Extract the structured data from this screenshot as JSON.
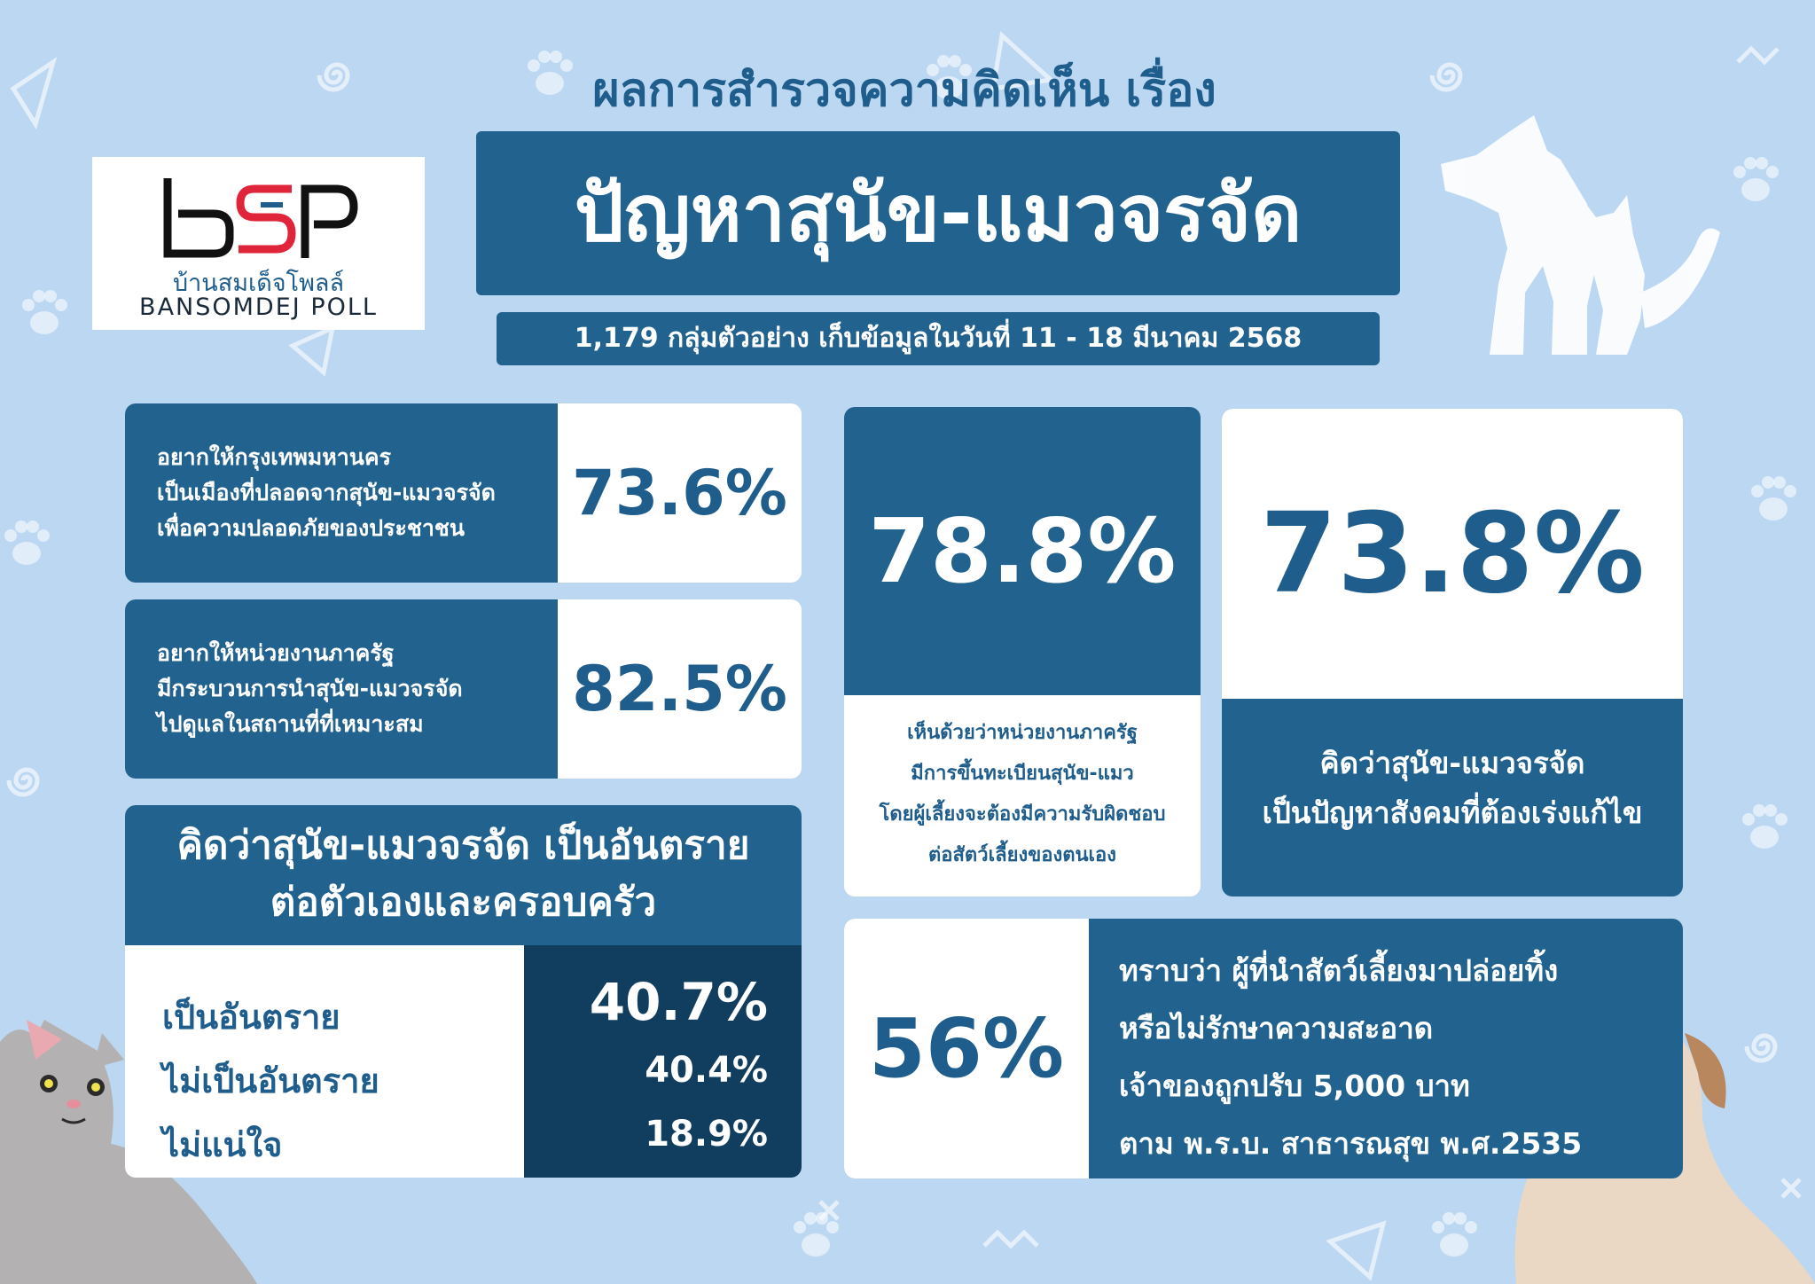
{
  "header": {
    "survey_line": "ผลการสำรวจความคิดเห็น เรื่อง",
    "title": "ปัญหาสุนัข-แมวจรจัด",
    "sample_info": "1,179 กลุ่มตัวอย่าง เก็บข้อมูลในวันที่ 11 - 18 มีนาคม 2568"
  },
  "logo": {
    "mark": "bSP",
    "thai_name": "บ้านสมเด็จโพลล์",
    "english_name": "BANSOMDEJ POLL"
  },
  "stats_left": [
    {
      "lines": [
        "อยากให้กรุงเทพมหานคร",
        "เป็นเมืองที่ปลอดจากสุนัข-แมวจรจัด",
        "เพื่อความปลอดภัยของประชาชน"
      ],
      "value": "73.6%"
    },
    {
      "lines": [
        "อยากให้หน่วยงานภาครัฐ",
        "มีกระบวนการนำสุนัข-แมวจรจัด",
        "ไปดูแลในสถานที่ที่เหมาะสม"
      ],
      "value": "82.5%"
    }
  ],
  "danger": {
    "title_lines": [
      "คิดว่าสุนัข-แมวจรจัด เป็นอันตราย",
      "ต่อตัวเองและครอบครัว"
    ],
    "rows": [
      {
        "label": "เป็นอันตราย",
        "value": "40.7%"
      },
      {
        "label": "ไม่เป็นอันตราย",
        "value": "40.4%"
      },
      {
        "label": "ไม่แน่ใจ",
        "value": "18.9%"
      }
    ]
  },
  "registration": {
    "value": "78.8%",
    "lines": [
      "เห็นด้วยว่าหน่วยงานภาครัฐ",
      "มีการขึ้นทะเบียนสุนัข-แมว",
      "โดยผู้เลี้ยงจะต้องมีความรับผิดชอบ",
      "ต่อสัตว์เลี้ยงของตนเอง"
    ]
  },
  "social_problem": {
    "value": "73.8%",
    "lines": [
      "คิดว่าสุนัข-แมวจรจัด",
      "เป็นปัญหาสังคมที่ต้องเร่งแก้ไข"
    ]
  },
  "fine": {
    "value": "56%",
    "lines": [
      "ทราบว่า ผู้ที่นำสัตว์เลี้ยงมาปล่อยทิ้ง",
      "หรือไม่รักษาความสะอาด",
      "เจ้าของถูกปรับ 5,000 บาท",
      "ตาม พ.ร.บ. สาธารณสุข พ.ศ.2535"
    ]
  },
  "colors": {
    "background": "#bcd7f2",
    "primary": "#22628f",
    "dark": "#113d5e",
    "text": "#1f5e8c",
    "logo_red": "#e0243a"
  },
  "decor": {
    "icons": [
      "paw-icon",
      "swirl-icon",
      "triangle-icon",
      "dog-cat-silhouette-icon",
      "cat-illustration",
      "dog-illustration"
    ]
  }
}
